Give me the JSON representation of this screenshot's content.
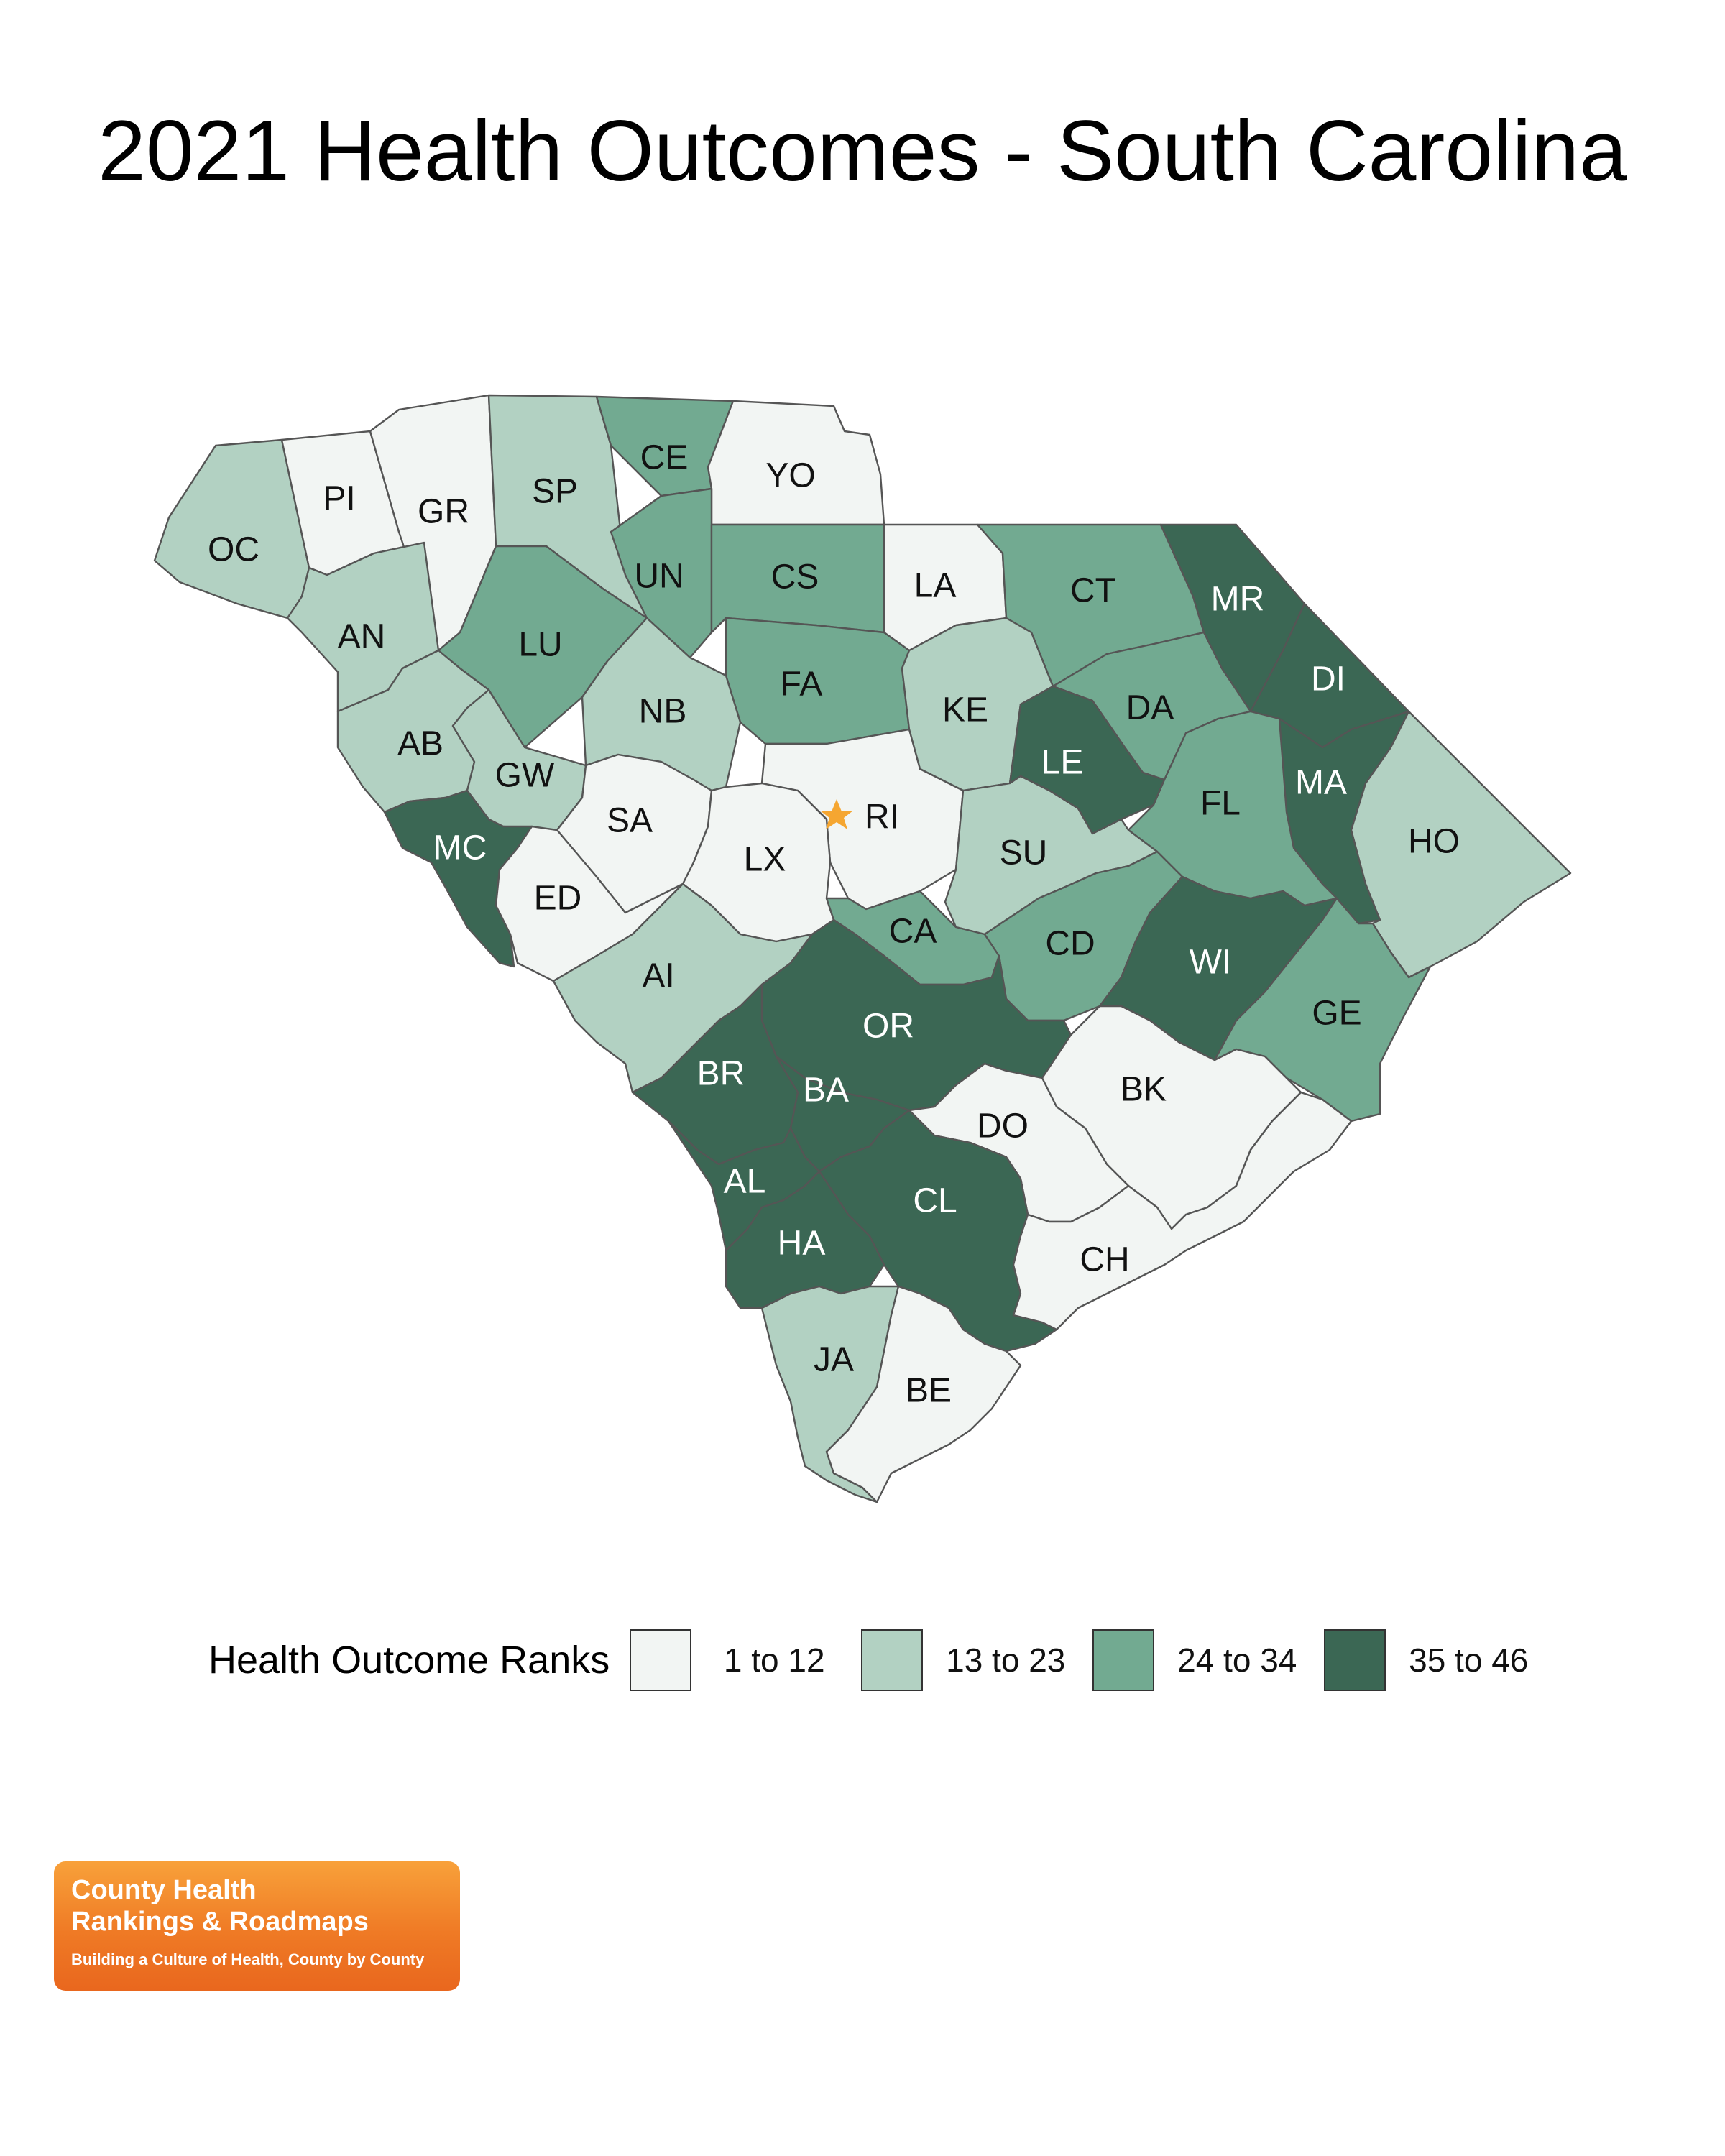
{
  "title": "2021 Health Outcomes - South Carolina",
  "colors": {
    "r1": "#f2f5f3",
    "r2": "#b2d1c2",
    "r3": "#72aa91",
    "r4": "#3b6754",
    "star": "#f5a631",
    "label_dark": "#111111",
    "label_light": "#ffffff"
  },
  "legend": {
    "title": "Health Outcome Ranks",
    "items": [
      {
        "label": "1 to 12",
        "color": "#f2f5f3"
      },
      {
        "label": "13 to 23",
        "color": "#b2d1c2"
      },
      {
        "label": "24 to 34",
        "color": "#72aa91"
      },
      {
        "label": "35 to 46",
        "color": "#3b6754"
      }
    ]
  },
  "star_icon": "state-capital-star-icon",
  "counties": [
    {
      "abbr": "OC",
      "rank_group": 2
    },
    {
      "abbr": "PI",
      "rank_group": 1
    },
    {
      "abbr": "GR",
      "rank_group": 1
    },
    {
      "abbr": "SP",
      "rank_group": 2
    },
    {
      "abbr": "CE",
      "rank_group": 3
    },
    {
      "abbr": "YO",
      "rank_group": 1
    },
    {
      "abbr": "AN",
      "rank_group": 2
    },
    {
      "abbr": "UN",
      "rank_group": 3
    },
    {
      "abbr": "CS",
      "rank_group": 3
    },
    {
      "abbr": "LA",
      "rank_group": 1
    },
    {
      "abbr": "CT",
      "rank_group": 3
    },
    {
      "abbr": "MR",
      "rank_group": 4
    },
    {
      "abbr": "LU",
      "rank_group": 3
    },
    {
      "abbr": "DI",
      "rank_group": 4
    },
    {
      "abbr": "FA",
      "rank_group": 3
    },
    {
      "abbr": "KE",
      "rank_group": 2
    },
    {
      "abbr": "NB",
      "rank_group": 2
    },
    {
      "abbr": "DA",
      "rank_group": 3
    },
    {
      "abbr": "AB",
      "rank_group": 2
    },
    {
      "abbr": "LE",
      "rank_group": 4
    },
    {
      "abbr": "GW",
      "rank_group": 2
    },
    {
      "abbr": "MA",
      "rank_group": 4
    },
    {
      "abbr": "RI",
      "rank_group": 1
    },
    {
      "abbr": "SA",
      "rank_group": 1
    },
    {
      "abbr": "FL",
      "rank_group": 3
    },
    {
      "abbr": "HO",
      "rank_group": 2
    },
    {
      "abbr": "MC",
      "rank_group": 4
    },
    {
      "abbr": "LX",
      "rank_group": 1
    },
    {
      "abbr": "SU",
      "rank_group": 2
    },
    {
      "abbr": "ED",
      "rank_group": 1
    },
    {
      "abbr": "CA",
      "rank_group": 3
    },
    {
      "abbr": "CD",
      "rank_group": 3
    },
    {
      "abbr": "WI",
      "rank_group": 4
    },
    {
      "abbr": "AI",
      "rank_group": 2
    },
    {
      "abbr": "OR",
      "rank_group": 4
    },
    {
      "abbr": "GE",
      "rank_group": 3
    },
    {
      "abbr": "BR",
      "rank_group": 4
    },
    {
      "abbr": "BA",
      "rank_group": 4
    },
    {
      "abbr": "BK",
      "rank_group": 1
    },
    {
      "abbr": "DO",
      "rank_group": 1
    },
    {
      "abbr": "AL",
      "rank_group": 4
    },
    {
      "abbr": "CL",
      "rank_group": 4
    },
    {
      "abbr": "HA",
      "rank_group": 4
    },
    {
      "abbr": "CH",
      "rank_group": 1
    },
    {
      "abbr": "JA",
      "rank_group": 2
    },
    {
      "abbr": "BE",
      "rank_group": 1
    }
  ],
  "logo": {
    "line1": "County Health",
    "line2": "Rankings & Roadmaps",
    "tagline": "Building a Culture of Health, County by County"
  }
}
